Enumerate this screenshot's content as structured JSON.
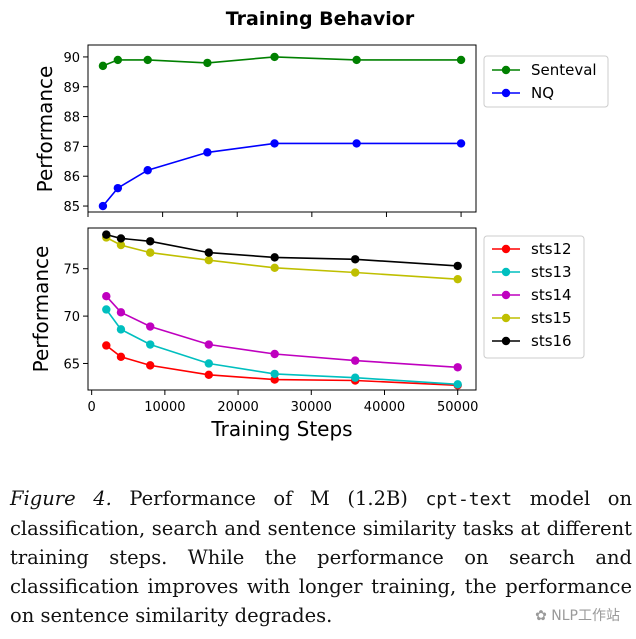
{
  "chart_data": [
    {
      "type": "line",
      "title": "Training Behavior",
      "xlabel": "",
      "ylabel": "Performance",
      "x": [
        2000,
        4000,
        8000,
        16000,
        25000,
        36000,
        50000
      ],
      "xlim": [
        0,
        52000
      ],
      "ylim": [
        84.8,
        90.4
      ],
      "yticks": [
        85,
        86,
        87,
        88,
        89,
        90
      ],
      "xtick_labels_shown": false,
      "legend_position": "right",
      "series": [
        {
          "name": "Senteval",
          "color": "#008000",
          "values": [
            89.7,
            89.9,
            89.9,
            89.8,
            90.0,
            89.9,
            89.9
          ]
        },
        {
          "name": "NQ",
          "color": "#0000ff",
          "values": [
            85.0,
            85.6,
            86.2,
            86.8,
            87.1,
            87.1,
            87.1
          ]
        }
      ]
    },
    {
      "type": "line",
      "title": "",
      "xlabel": "Training Steps",
      "ylabel": "Performance",
      "x": [
        2000,
        4000,
        8000,
        16000,
        25000,
        36000,
        50000
      ],
      "xlim": [
        -500,
        52500
      ],
      "ylim": [
        62.2,
        79.3
      ],
      "yticks": [
        65,
        70,
        75
      ],
      "xticks": [
        0,
        10000,
        20000,
        30000,
        40000,
        50000
      ],
      "legend_position": "right",
      "series": [
        {
          "name": "sts12",
          "color": "#ff0000",
          "values": [
            66.9,
            65.7,
            64.8,
            63.8,
            63.3,
            63.2,
            62.7
          ]
        },
        {
          "name": "sts13",
          "color": "#00bfbf",
          "values": [
            70.7,
            68.6,
            67.0,
            65.0,
            63.9,
            63.5,
            62.8
          ]
        },
        {
          "name": "sts14",
          "color": "#bf00bf",
          "values": [
            72.1,
            70.4,
            68.9,
            67.0,
            66.0,
            65.3,
            64.6
          ]
        },
        {
          "name": "sts15",
          "color": "#bfbf00",
          "values": [
            78.3,
            77.5,
            76.7,
            75.9,
            75.1,
            74.6,
            73.9
          ]
        },
        {
          "name": "sts16",
          "color": "#000000",
          "values": [
            78.6,
            78.2,
            77.9,
            76.7,
            76.2,
            76.0,
            75.3
          ]
        }
      ]
    }
  ],
  "caption": {
    "figure_label": "Figure 4.",
    "text_before_code": "Performance of M (1.2B)",
    "code_text": "cpt-text",
    "text_after_code": "model on classification, search and sentence similarity tasks at different training steps.  While the performance on search and classification improves with longer training, the performance on sentence similarity degrades."
  },
  "watermark": {
    "text": "NLP工作站"
  }
}
